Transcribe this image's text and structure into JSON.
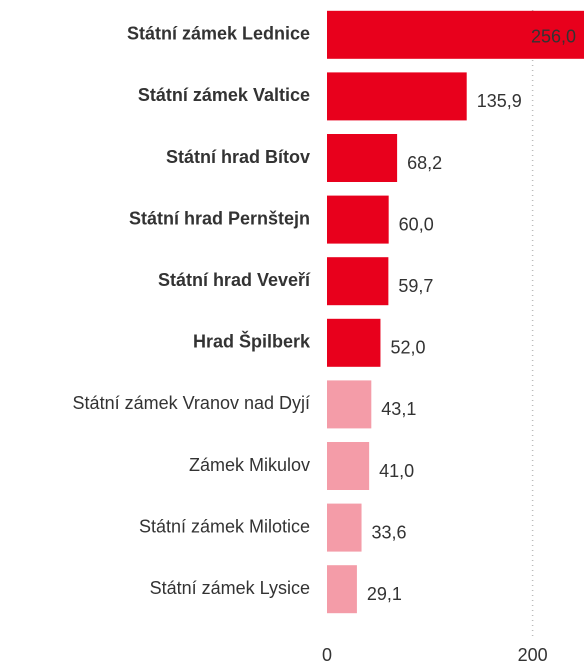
{
  "chart_data": {
    "type": "hbar",
    "categories": [
      "Státní zámek Lednice",
      "Státní zámek Valtice",
      "Státní hrad Bítov",
      "Státní hrad Pernštejn",
      "Státní hrad Veveří",
      "Hrad Špilberk",
      "Státní zámek Vranov nad Dyjí",
      "Zámek Mikulov",
      "Státní zámek Milotice",
      "Státní zámek Lysice"
    ],
    "values": [
      256.0,
      135.9,
      68.2,
      60.0,
      59.7,
      52.0,
      43.1,
      41.0,
      33.6,
      29.1
    ],
    "value_labels": [
      "256,0",
      "135,9",
      "68,2",
      "60,0",
      "59,7",
      "52,0",
      "43,1",
      "41,0",
      "33,6",
      "29,1"
    ],
    "colors": [
      "#e8001c",
      "#e8001c",
      "#e8001c",
      "#e8001c",
      "#e8001c",
      "#e8001c",
      "#f49ca8",
      "#f49ca8",
      "#f49ca8",
      "#f49ca8"
    ],
    "label_bold": [
      true,
      true,
      true,
      true,
      true,
      true,
      false,
      false,
      false,
      false
    ],
    "xlim": [
      0,
      250
    ],
    "xticks": [
      0,
      200
    ],
    "grid": true
  }
}
